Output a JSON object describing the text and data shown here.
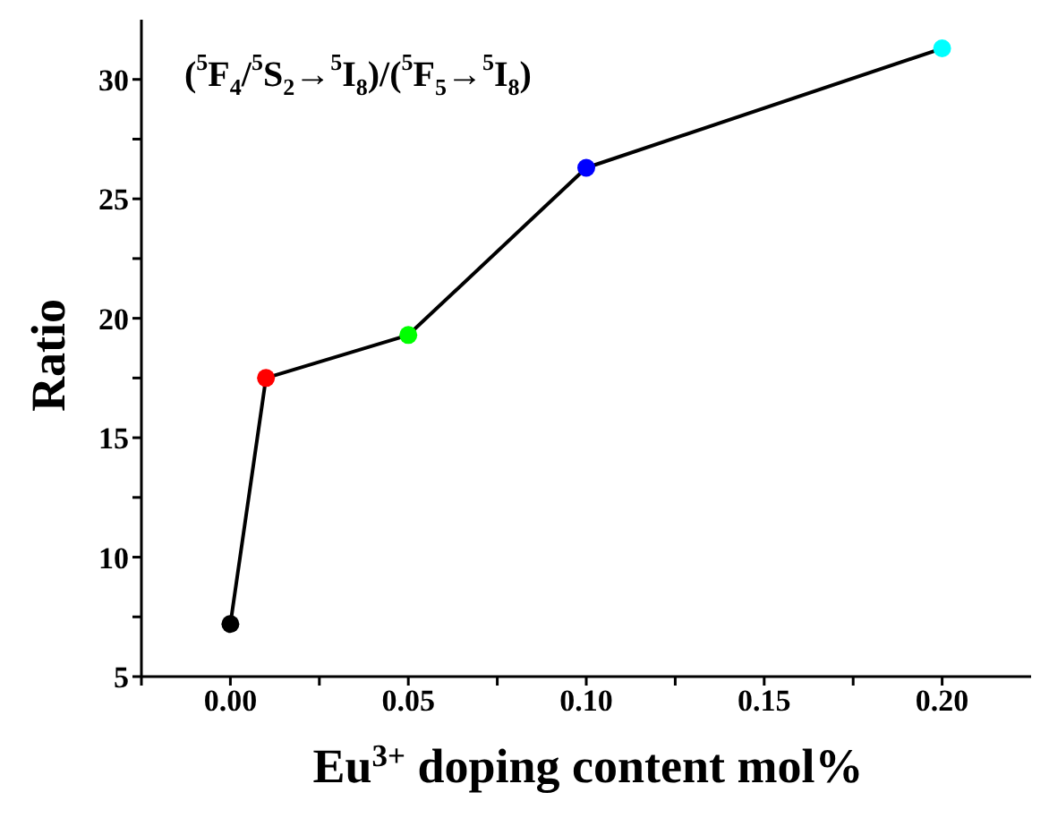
{
  "chart_data": {
    "type": "line",
    "xlabel": "Eu$^{3+}$ doping content mol%",
    "ylabel": "Ratio",
    "annotations": [
      "($^{5}$F$_{4}$/$^{5}$S$_{2}$→$^{5}$I$_{8}$)/($^{5}$F$_{5}$→$^{5}$I$_{8}$)"
    ],
    "x": [
      0,
      0.01,
      0.05,
      0.1,
      0.2
    ],
    "series": [
      {
        "color": "#000000",
        "values": [
          7.2,
          17.5,
          19.3,
          26.3,
          31.3
        ],
        "colors": [
          "#000000",
          "#ff0000",
          "#00ff00",
          "#0000ff",
          "#00ffff"
        ]
      }
    ],
    "xlim": [
      -0.025,
      0.225
    ],
    "xticks": [
      {
        "value": -0.025,
        "label": null
      },
      {
        "value": 0,
        "label": "0.00"
      },
      {
        "value": 0.025,
        "label": null
      },
      {
        "value": 0.05,
        "label": "0.05"
      },
      {
        "value": 0.075,
        "label": null
      },
      {
        "value": 0.1,
        "label": "0.10"
      },
      {
        "value": 0.125,
        "label": null
      },
      {
        "value": 0.15,
        "label": "0.15"
      },
      {
        "value": 0.175,
        "label": null
      },
      {
        "value": 0.2,
        "label": "0.20"
      }
    ],
    "ylim": [
      5,
      32.5
    ],
    "yticks": [
      5,
      {
        "value": 7.5,
        "label": null
      },
      10,
      {
        "value": 12.5,
        "label": null
      },
      15,
      {
        "value": 17.5,
        "label": null
      },
      20,
      {
        "value": 22.5,
        "label": null
      },
      25,
      {
        "value": 27.5,
        "label": null
      },
      30
    ],
    "grid": false,
    "legend": false,
    "marker": "circle",
    "line_style": "solid"
  }
}
